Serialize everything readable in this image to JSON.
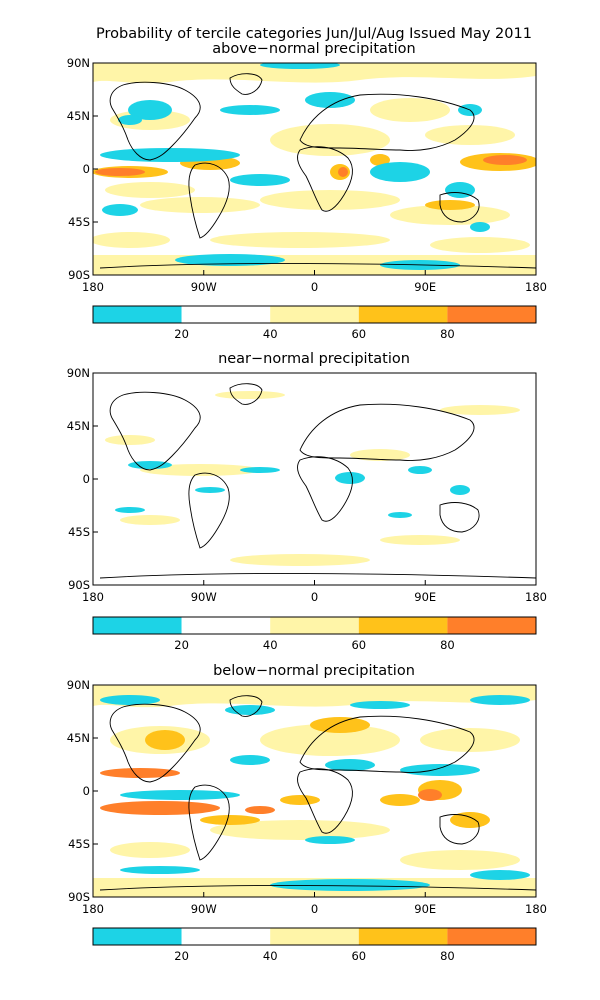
{
  "title": "Probability of tercile categories Jun/Jul/Aug Issued May 2011",
  "colors": {
    "cyan": "#1dd3e6",
    "white": "#ffffff",
    "pale_yellow": "#fff5a8",
    "gold": "#ffc21a",
    "orange": "#ff7f2a",
    "coast": "#000000"
  },
  "legend": {
    "ticks": [
      "20",
      "40",
      "60",
      "80"
    ],
    "colors": [
      "#1dd3e6",
      "#ffffff",
      "#fff5a8",
      "#ffc21a",
      "#ff7f2a"
    ]
  },
  "lon_ticks": [
    "180",
    "90W",
    "0",
    "90E",
    "180"
  ],
  "lat_ticks": [
    "90N",
    "45N",
    "0",
    "45S",
    "90S"
  ],
  "panels": [
    {
      "label": "above−normal precipitation"
    },
    {
      "label": "near−normal precipitation"
    },
    {
      "label": "below−normal precipitation"
    }
  ]
}
